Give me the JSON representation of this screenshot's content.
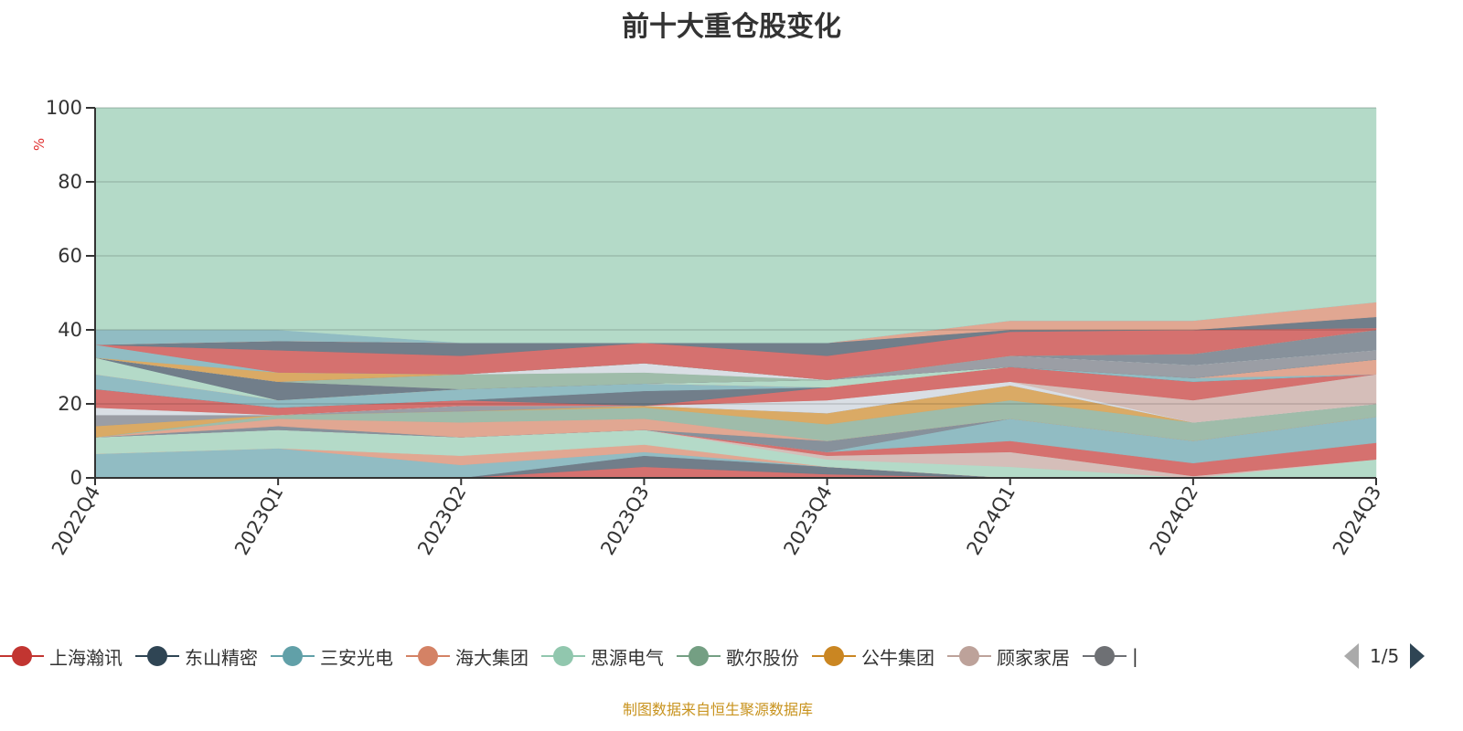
{
  "chart_data": {
    "type": "area",
    "stacked": true,
    "title": "前十大重仓股变化",
    "ylabel": "%",
    "xlabel": "",
    "categories": [
      "2022Q4",
      "2023Q1",
      "2023Q2",
      "2023Q3",
      "2023Q4",
      "2024Q1",
      "2024Q2",
      "2024Q3"
    ],
    "ylim": [
      0,
      100
    ],
    "yticks": [
      0,
      20,
      40,
      60,
      80,
      100
    ],
    "grid": true,
    "legend_position": "bottom",
    "series": [
      {
        "color": "#d46e6c",
        "values": [
          0,
          0,
          0,
          3,
          1,
          0,
          0,
          0
        ]
      },
      {
        "color": "#6e7b88",
        "values": [
          0,
          0,
          0,
          3,
          2,
          0,
          0,
          0
        ]
      },
      {
        "color": "#8fbbc2",
        "values": [
          6.5,
          8,
          3.5,
          1,
          0,
          0,
          0,
          0
        ]
      },
      {
        "color": "#e0a590",
        "values": [
          0,
          0,
          2.5,
          2,
          0,
          0,
          0,
          0
        ]
      },
      {
        "color": "#b2d9c7",
        "values": [
          4.5,
          5,
          5,
          4,
          2,
          3,
          0,
          5
        ]
      },
      {
        "color": "#d4bdb8",
        "values": [
          0,
          0,
          0,
          0,
          1,
          4,
          0.5,
          0
        ]
      },
      {
        "color": "#d46e6c",
        "values": [
          0,
          0,
          0,
          0,
          1,
          3,
          3.5,
          4.5
        ]
      },
      {
        "color": "#8fbbc2",
        "values": [
          0,
          0,
          0,
          0,
          0,
          6,
          6,
          7
        ]
      },
      {
        "color": "#858f99",
        "values": [
          0,
          1,
          0,
          0,
          3,
          0,
          0,
          0
        ]
      },
      {
        "color": "#e0a590",
        "values": [
          0,
          2,
          4,
          3,
          0,
          0,
          0,
          0
        ]
      },
      {
        "color": "#9dbba8",
        "values": [
          0,
          1,
          3,
          3,
          4.5,
          5,
          5,
          3.5
        ]
      },
      {
        "color": "#d9a862",
        "values": [
          3,
          0,
          0,
          0.5,
          3,
          4,
          0,
          0
        ]
      },
      {
        "color": "#999ca3",
        "values": [
          3,
          0,
          1.5,
          0,
          0,
          0,
          0,
          0
        ]
      },
      {
        "color": "#d8dde3",
        "values": [
          2,
          0,
          0,
          0,
          3.5,
          1,
          0,
          0
        ]
      },
      {
        "color": "#d4bdb8",
        "values": [
          0,
          0,
          0,
          0,
          0,
          0,
          6,
          8
        ]
      },
      {
        "color": "#d46e6c",
        "values": [
          5,
          2,
          1.5,
          0,
          3.5,
          4,
          5,
          0
        ]
      },
      {
        "color": "#6e7b88",
        "values": [
          0,
          0,
          0,
          4,
          0,
          0,
          0,
          0
        ]
      },
      {
        "color": "#8fbbc2",
        "values": [
          4,
          2,
          3,
          2,
          0,
          0,
          1,
          0
        ]
      },
      {
        "color": "#e0a590",
        "values": [
          0,
          0,
          0,
          0,
          0,
          0,
          0,
          4
        ]
      },
      {
        "color": "#b2d9c7",
        "values": [
          4.5,
          0,
          0,
          0,
          2,
          0,
          0,
          0
        ]
      },
      {
        "color": "#6e7b88",
        "values": [
          0,
          5,
          0,
          0,
          0,
          0,
          0,
          0
        ]
      },
      {
        "color": "#999ca3",
        "values": [
          0,
          0,
          0,
          0,
          0,
          3,
          3.5,
          2.5
        ]
      },
      {
        "color": "#9dbba8",
        "values": [
          0,
          0,
          4,
          3,
          0,
          0,
          0,
          0
        ]
      },
      {
        "color": "#d8dde3",
        "values": [
          0,
          0,
          0,
          2.5,
          0,
          0,
          0,
          0
        ]
      },
      {
        "color": "#858f99",
        "values": [
          0,
          0,
          0,
          0,
          0,
          0,
          3,
          5.5
        ]
      },
      {
        "color": "#d9a862",
        "values": [
          0,
          2.5,
          0,
          0,
          0,
          0,
          0,
          0
        ]
      },
      {
        "color": "#8fbbc2",
        "values": [
          3.5,
          0,
          0,
          0,
          0,
          0,
          0,
          0
        ]
      },
      {
        "color": "#d46e6c",
        "values": [
          0,
          6,
          5,
          5.5,
          6.5,
          6.5,
          6.5,
          0.5
        ]
      },
      {
        "color": "#6e7b88",
        "values": [
          0,
          2.5,
          3.5,
          0,
          3.5,
          0.5,
          0,
          3
        ]
      },
      {
        "color": "#e0a590",
        "values": [
          0,
          0,
          0,
          0,
          0,
          2.5,
          2.5,
          4
        ]
      },
      {
        "color": "#8fbbc2",
        "values": [
          4,
          3,
          0,
          0,
          0,
          0,
          0,
          0
        ]
      },
      {
        "color": "#b2d9c7",
        "values": [
          60,
          60,
          63.5,
          63.5,
          63.5,
          57.5,
          57.5,
          52.5
        ]
      }
    ]
  },
  "legend": {
    "items": [
      {
        "label": "上海瀚讯",
        "color": "#c23531"
      },
      {
        "label": "东山精密",
        "color": "#2f4554"
      },
      {
        "label": "三安光电",
        "color": "#61a0a8"
      },
      {
        "label": "海大集团",
        "color": "#d48265"
      },
      {
        "label": "思源电气",
        "color": "#91c7ae"
      },
      {
        "label": "歌尔股份",
        "color": "#749f83"
      },
      {
        "label": "公牛集团",
        "color": "#ca8622"
      },
      {
        "label": "顾家家居",
        "color": "#bda29a"
      },
      {
        "label": "|",
        "color": "#6e7074"
      }
    ],
    "page": "1/5"
  },
  "source": "制图数据来自恒生聚源数据库"
}
